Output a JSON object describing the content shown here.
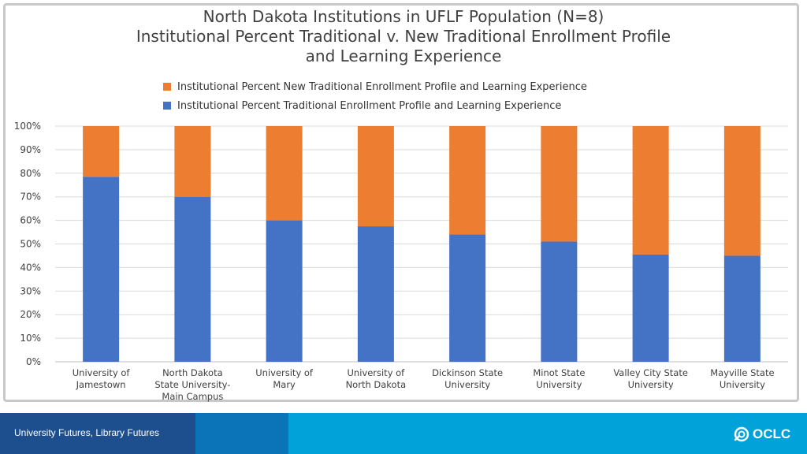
{
  "chart_data": {
    "type": "bar",
    "stacked": true,
    "title_lines": [
      "North Dakota Institutions in UFLF Population (N=8)",
      "Institutional Percent Traditional v. New Traditional Enrollment Profile",
      "and Learning Experience"
    ],
    "categories": [
      [
        "University of",
        "Jamestown"
      ],
      [
        "North Dakota",
        "State University-",
        "Main Campus"
      ],
      [
        "University of",
        "Mary"
      ],
      [
        "University of",
        "North Dakota"
      ],
      [
        "Dickinson State",
        "University"
      ],
      [
        "Minot State",
        "University"
      ],
      [
        "Valley City State",
        "University"
      ],
      [
        "Mayville State",
        "University"
      ]
    ],
    "series": [
      {
        "name": "Institutional Percent Traditional Enrollment Profile and Learning Experience",
        "color": "#4472c4",
        "values": [
          78.5,
          70,
          60,
          57.5,
          54,
          51,
          45.5,
          45
        ]
      },
      {
        "name": "Institutional Percent New Traditional Enrollment Profile and Learning Experience",
        "color": "#ed7d31",
        "values": [
          21.5,
          30,
          40,
          42.5,
          46,
          49,
          54.5,
          55
        ]
      }
    ],
    "legend_order": [
      1,
      0
    ],
    "ylim": [
      0,
      100
    ],
    "yticks": [
      "0%",
      "10%",
      "20%",
      "30%",
      "40%",
      "50%",
      "60%",
      "70%",
      "80%",
      "90%",
      "100%"
    ],
    "grid": true,
    "legend_position": "top"
  },
  "footer": {
    "text": "University Futures, Library Futures",
    "logo_text": "OCLC"
  }
}
